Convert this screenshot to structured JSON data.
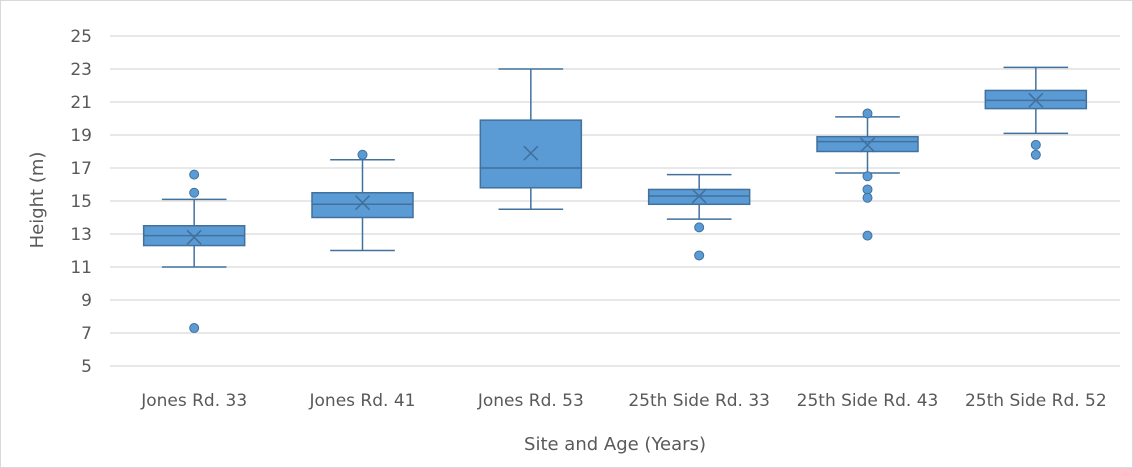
{
  "chart_data": {
    "type": "boxplot",
    "title": "",
    "xlabel": "Site and Age (Years)",
    "ylabel": "Height (m)",
    "ylim": [
      5,
      25
    ],
    "yticks": [
      5,
      7,
      9,
      11,
      13,
      15,
      17,
      19,
      21,
      23,
      25
    ],
    "grid": true,
    "legend": "none",
    "color": "#5b9bd5",
    "stroke_color": "#41719c",
    "categories": [
      "Jones Rd. 33",
      "Jones Rd. 41",
      "Jones Rd. 53",
      "25th Side Rd. 33",
      "25th Side Rd. 43",
      "25th Side Rd. 52"
    ],
    "boxes": [
      {
        "min": 11.0,
        "q1": 12.3,
        "median": 12.9,
        "q3": 13.5,
        "max": 15.1,
        "mean": 12.8,
        "outliers": [
          16.6,
          15.5,
          7.3
        ]
      },
      {
        "min": 12.0,
        "q1": 14.0,
        "median": 14.8,
        "q3": 15.5,
        "max": 17.5,
        "mean": 14.9,
        "outliers": [
          17.8
        ]
      },
      {
        "min": 14.5,
        "q1": 15.8,
        "median": 17.0,
        "q3": 19.9,
        "max": 23.0,
        "mean": 17.9,
        "outliers": []
      },
      {
        "min": 13.9,
        "q1": 14.8,
        "median": 15.3,
        "q3": 15.7,
        "max": 16.6,
        "mean": 15.3,
        "outliers": [
          13.4,
          11.7
        ]
      },
      {
        "min": 16.7,
        "q1": 18.0,
        "median": 18.6,
        "q3": 18.9,
        "max": 20.1,
        "mean": 18.4,
        "outliers": [
          20.3,
          16.5,
          15.7,
          15.2,
          12.9
        ]
      },
      {
        "min": 19.1,
        "q1": 20.6,
        "median": 21.1,
        "q3": 21.7,
        "max": 23.1,
        "mean": 21.1,
        "outliers": [
          18.4,
          17.8
        ]
      }
    ]
  }
}
